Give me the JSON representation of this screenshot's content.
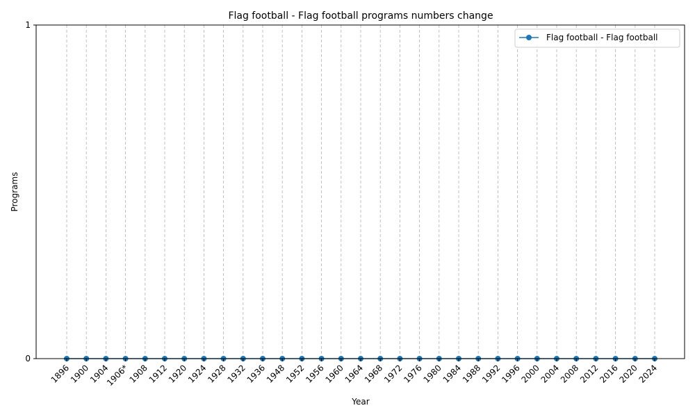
{
  "chart_data": {
    "type": "line",
    "title": "Flag football - Flag football programs numbers change",
    "xlabel": "Year",
    "ylabel": "Programs",
    "categories": [
      "1896",
      "1900",
      "1904",
      "1906*",
      "1908",
      "1912",
      "1920",
      "1924",
      "1928",
      "1932",
      "1936",
      "1948",
      "1952",
      "1956",
      "1960",
      "1964",
      "1968",
      "1972",
      "1976",
      "1980",
      "1984",
      "1988",
      "1992",
      "1996",
      "2000",
      "2004",
      "2008",
      "2012",
      "2016",
      "2020",
      "2024"
    ],
    "series": [
      {
        "name": "Flag football - Flag football",
        "values": [
          0,
          0,
          0,
          0,
          0,
          0,
          0,
          0,
          0,
          0,
          0,
          0,
          0,
          0,
          0,
          0,
          0,
          0,
          0,
          0,
          0,
          0,
          0,
          0,
          0,
          0,
          0,
          0,
          0,
          0,
          0
        ],
        "color": "#1f77b4",
        "marker": "circle"
      }
    ],
    "ylim": [
      0,
      1
    ],
    "yticks": [
      0,
      1
    ],
    "grid": "vertical-dashed",
    "legend_position": "top-right"
  }
}
